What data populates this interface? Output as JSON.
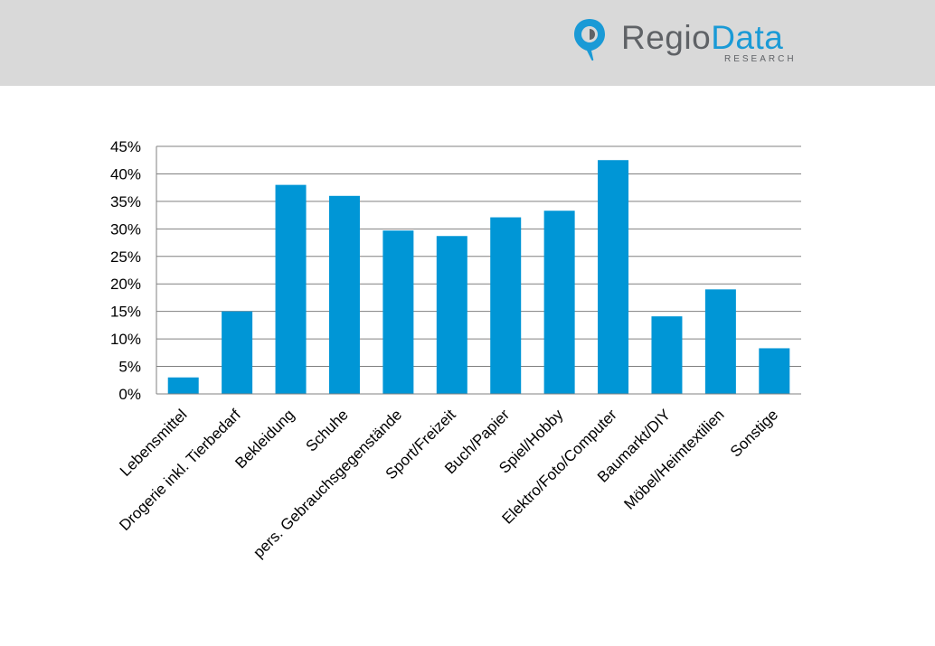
{
  "header": {
    "brand_regio": "Regio",
    "brand_data": "Data",
    "brand_sub": "RESEARCH",
    "logo_icon": "map-pin-icon",
    "background": "#d9d9d9",
    "brand_gray": "#5f6266",
    "brand_blue": "#1a9ad6"
  },
  "chart_data": {
    "type": "bar",
    "categories": [
      "Lebensmittel",
      "Drogerie inkl. Tierbedarf",
      "Bekleidung",
      "Schuhe",
      "pers. Gebrauchsgegenstände",
      "Sport/Freizeit",
      "Buch/Papier",
      "Spiel/Hobby",
      "Elektro/Foto/Computer",
      "Baumarkt/DIY",
      "Möbel/Heimtextilien",
      "Sonstige"
    ],
    "values": [
      3,
      15,
      38,
      36,
      29.7,
      28.7,
      32.1,
      33.3,
      42.5,
      14.1,
      19,
      8.3
    ],
    "unit": "%",
    "ylim": [
      0,
      45
    ],
    "yticks": [
      0,
      5,
      10,
      15,
      20,
      25,
      30,
      35,
      40,
      45
    ],
    "ytick_labels": [
      "0%",
      "5%",
      "10%",
      "15%",
      "20%",
      "25%",
      "30%",
      "35%",
      "40%",
      "45%"
    ],
    "grid": true,
    "legend": "none",
    "bar_color": "#0096d6",
    "grid_color": "#808080"
  }
}
